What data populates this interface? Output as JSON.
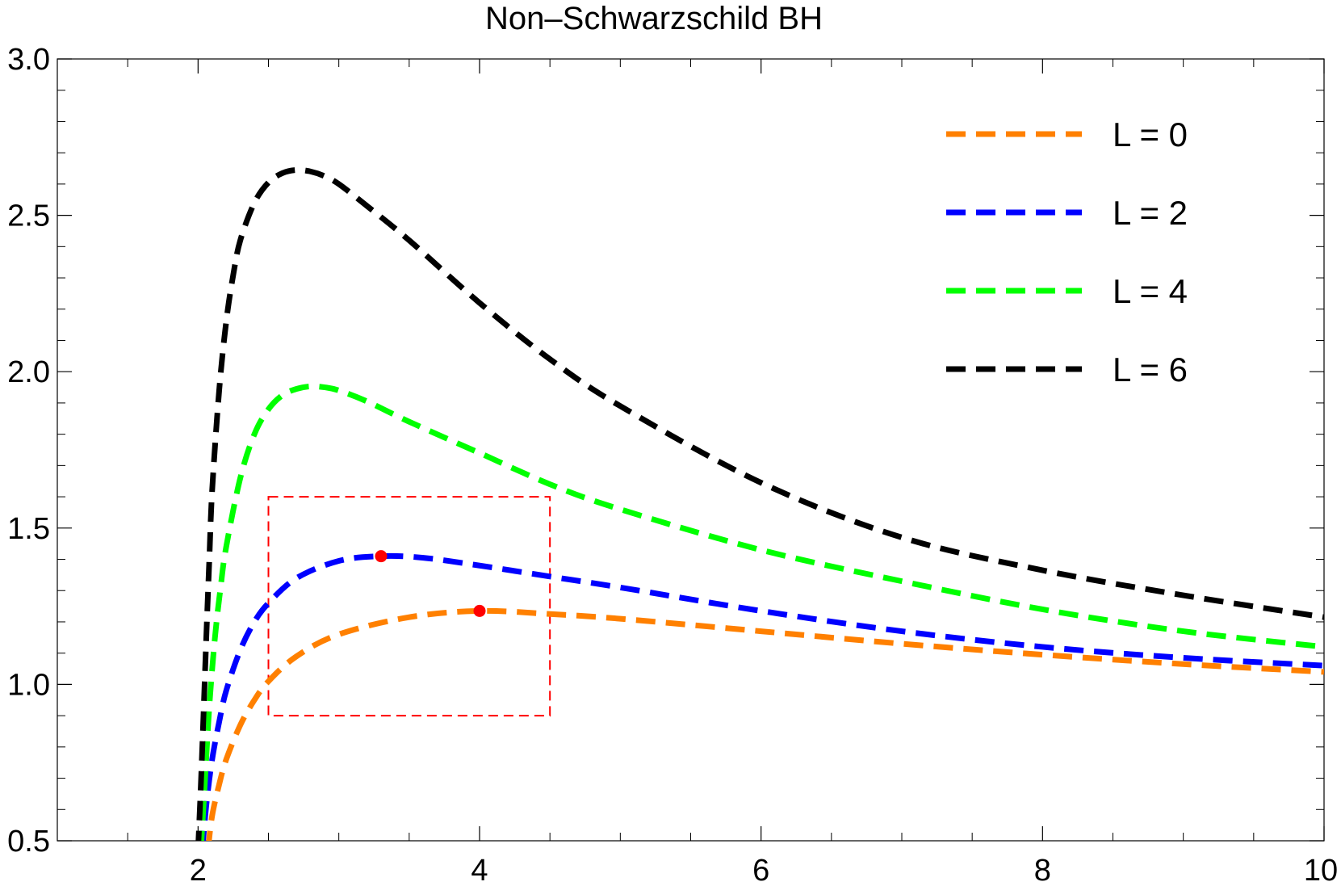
{
  "chart_data": {
    "type": "line",
    "title": "Non–Schwarzschild BH",
    "xlabel": "",
    "ylabel": "",
    "xlim": [
      1.0,
      10.0
    ],
    "ylim": [
      0.5,
      3.0
    ],
    "x_ticks": [
      2,
      4,
      6,
      8,
      10
    ],
    "y_ticks": [
      0.5,
      1.0,
      1.5,
      2.0,
      2.5,
      3.0
    ],
    "x_tick_labels": [
      "2",
      "4",
      "6",
      "8",
      "10"
    ],
    "y_tick_labels": [
      "0.5",
      "1.0",
      "1.5",
      "2.0",
      "2.5",
      "3.0"
    ],
    "grid": false,
    "legend_position": "top-right",
    "line_style": "dashed",
    "series": [
      {
        "name": "L = 0",
        "color": "#ff8000",
        "x": [
          2.07,
          2.1,
          2.15,
          2.2,
          2.3,
          2.4,
          2.5,
          2.7,
          3.0,
          3.5,
          4.0,
          4.5,
          5.0,
          6.0,
          7.0,
          8.0,
          9.0,
          10.0
        ],
        "y": [
          0.47,
          0.58,
          0.68,
          0.76,
          0.87,
          0.95,
          1.01,
          1.09,
          1.16,
          1.215,
          1.235,
          1.225,
          1.21,
          1.17,
          1.13,
          1.095,
          1.065,
          1.04
        ]
      },
      {
        "name": "L = 2",
        "color": "#0000ff",
        "x": [
          2.03,
          2.06,
          2.1,
          2.15,
          2.2,
          2.3,
          2.4,
          2.5,
          2.7,
          3.0,
          3.3,
          3.6,
          4.0,
          4.5,
          5.0,
          6.0,
          7.0,
          8.0,
          9.0,
          10.0
        ],
        "y": [
          0.47,
          0.62,
          0.76,
          0.88,
          0.98,
          1.11,
          1.2,
          1.26,
          1.34,
          1.395,
          1.41,
          1.405,
          1.38,
          1.345,
          1.31,
          1.235,
          1.17,
          1.12,
          1.085,
          1.06
        ]
      },
      {
        "name": "L = 4",
        "color": "#00ff00",
        "x": [
          2.02,
          2.05,
          2.08,
          2.12,
          2.16,
          2.2,
          2.3,
          2.4,
          2.5,
          2.6,
          2.7,
          2.8,
          2.9,
          3.0,
          3.2,
          3.5,
          4.0,
          4.5,
          5.0,
          6.0,
          7.0,
          8.0,
          9.0,
          10.0
        ],
        "y": [
          0.47,
          0.7,
          0.93,
          1.15,
          1.31,
          1.44,
          1.66,
          1.8,
          1.88,
          1.925,
          1.945,
          1.953,
          1.95,
          1.94,
          1.905,
          1.84,
          1.74,
          1.64,
          1.56,
          1.43,
          1.33,
          1.24,
          1.17,
          1.12
        ]
      },
      {
        "name": "L = 6",
        "color": "#000000",
        "x": [
          2.0,
          2.02,
          2.04,
          2.06,
          2.08,
          2.1,
          2.15,
          2.2,
          2.25,
          2.3,
          2.4,
          2.5,
          2.6,
          2.7,
          2.8,
          2.9,
          3.0,
          3.2,
          3.5,
          4.0,
          4.5,
          5.0,
          6.0,
          7.0,
          8.0,
          9.0,
          10.0
        ],
        "y": [
          0.47,
          0.68,
          0.92,
          1.17,
          1.4,
          1.62,
          1.94,
          2.16,
          2.31,
          2.42,
          2.54,
          2.605,
          2.635,
          2.645,
          2.64,
          2.625,
          2.6,
          2.53,
          2.42,
          2.22,
          2.04,
          1.89,
          1.645,
          1.47,
          1.365,
          1.285,
          1.215
        ]
      }
    ],
    "markers": [
      {
        "x": 3.3,
        "y": 1.41,
        "color": "#ff0000"
      },
      {
        "x": 4.0,
        "y": 1.235,
        "color": "#ff0000"
      }
    ],
    "annotation_box": {
      "x_range": [
        2.5,
        4.5
      ],
      "y_range": [
        0.9,
        1.6
      ],
      "color": "#ff0000",
      "style": "dashed"
    }
  }
}
